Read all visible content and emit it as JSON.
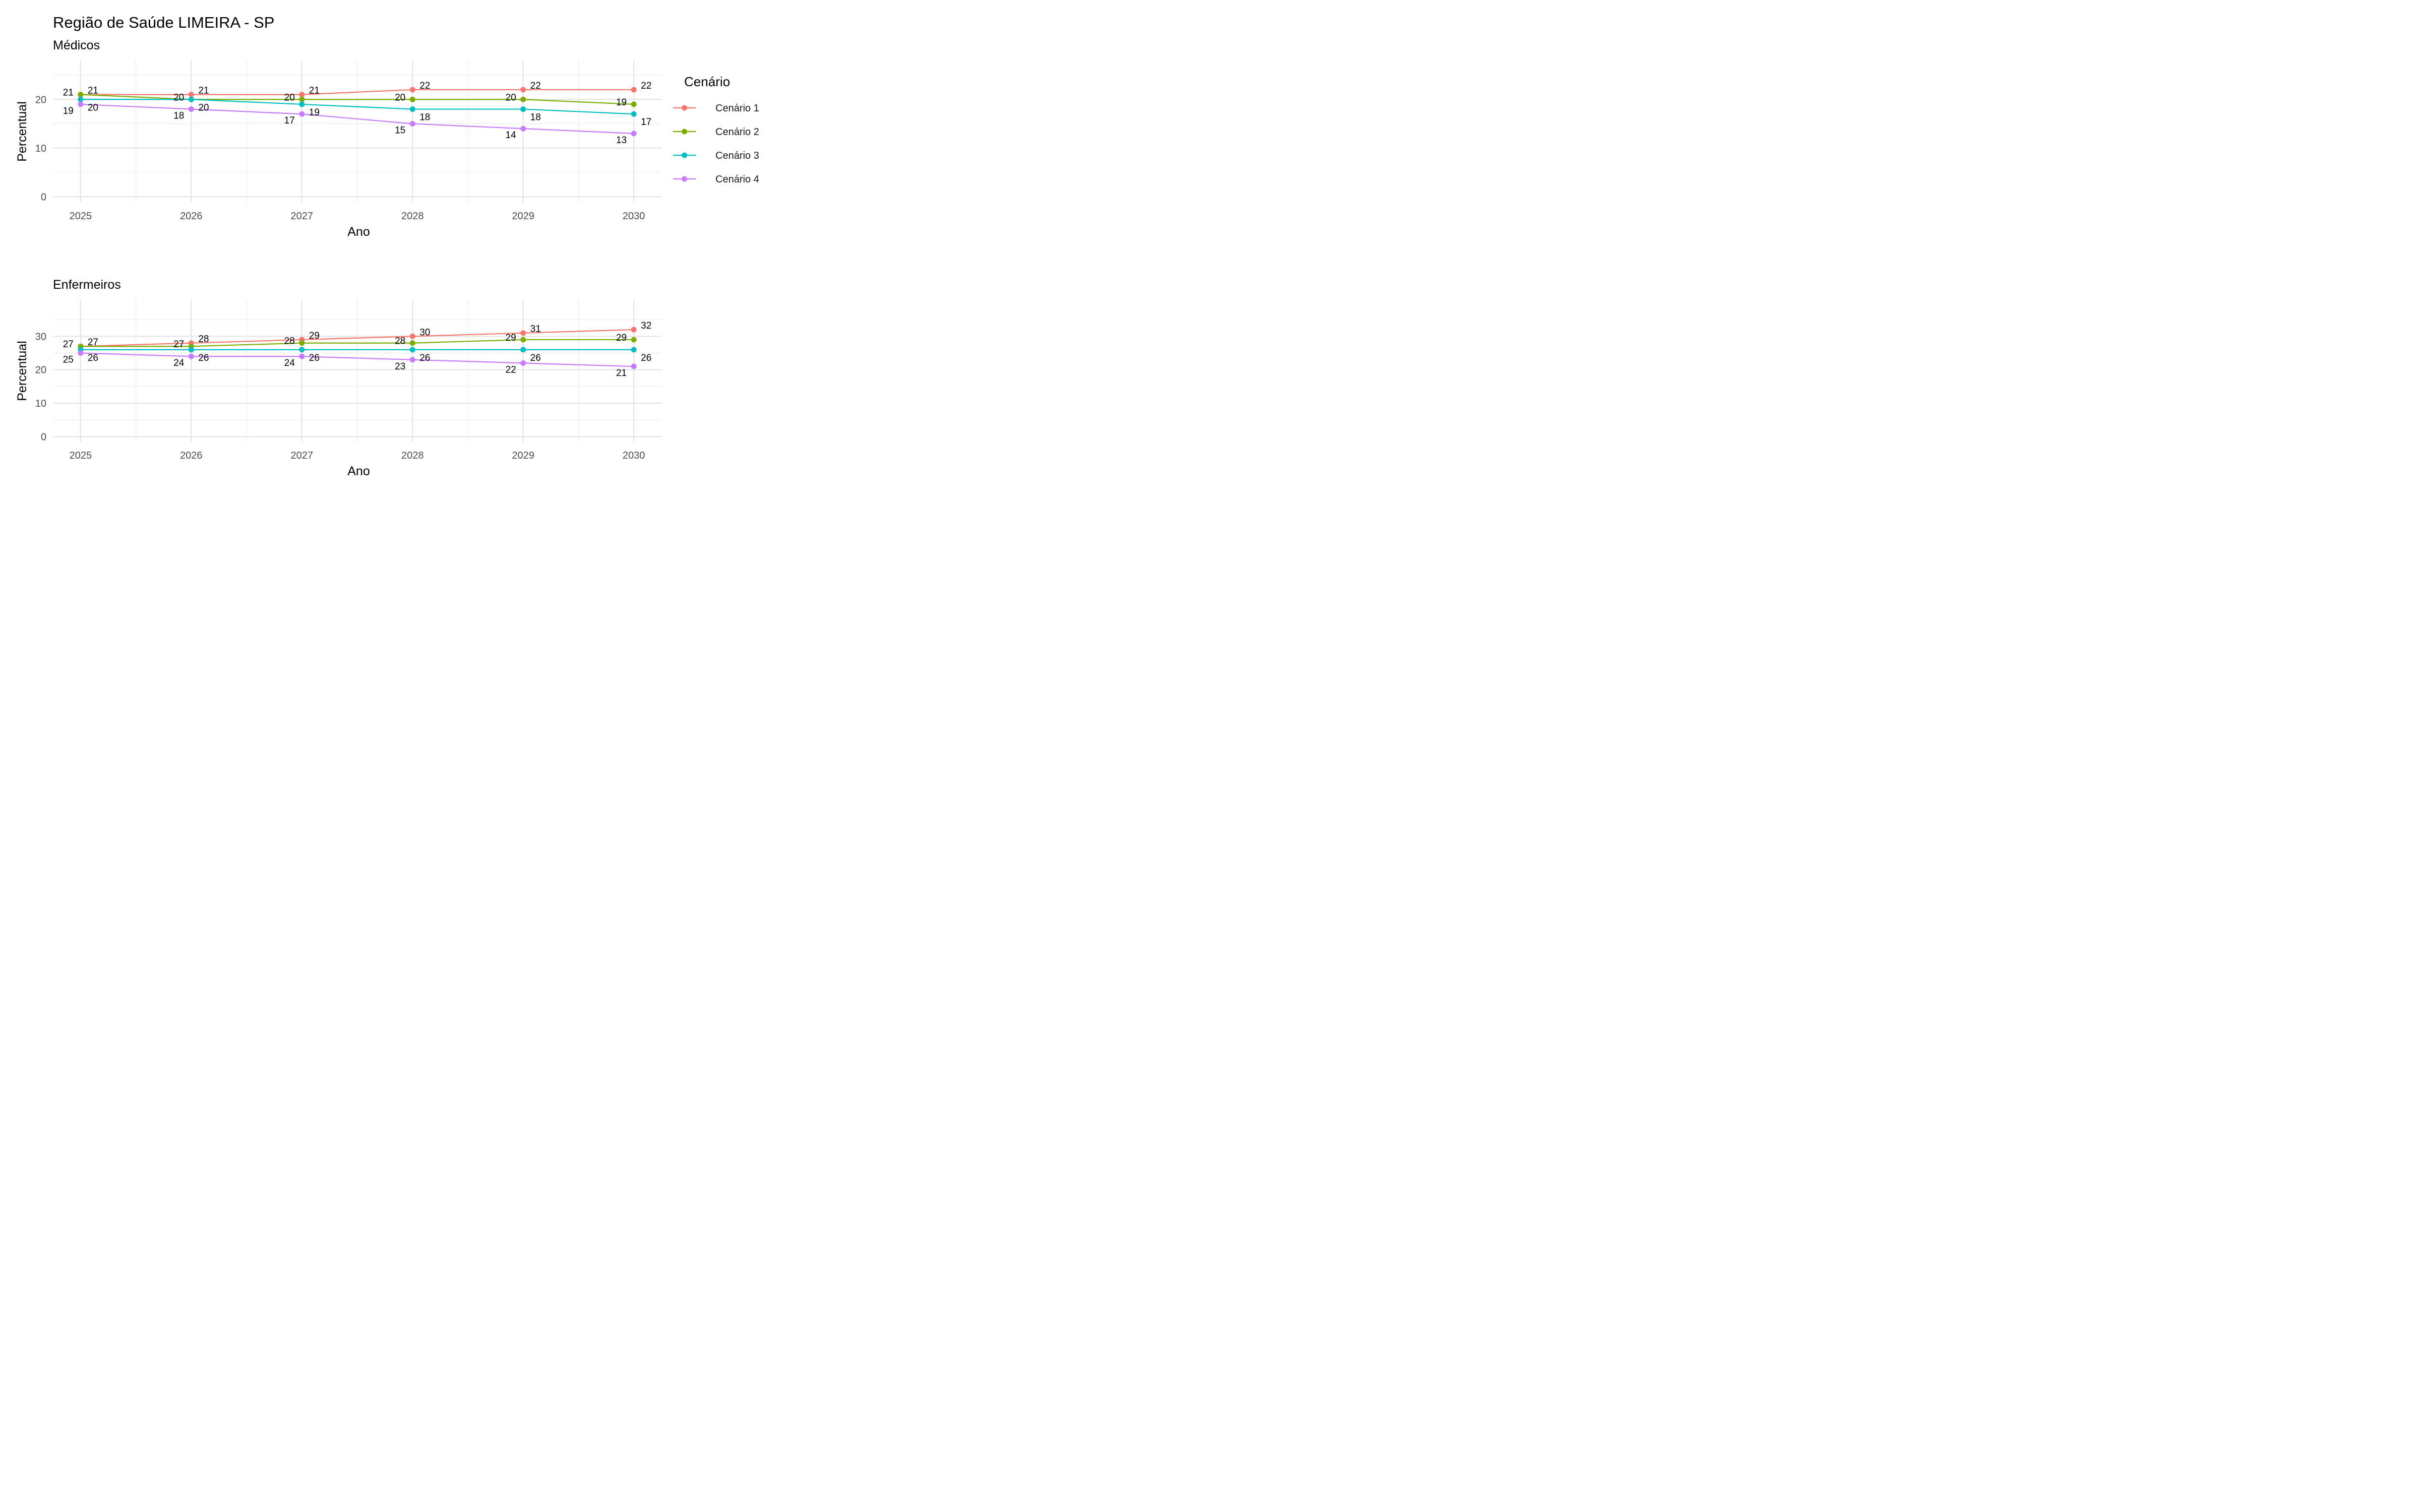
{
  "title": "Região de Saúde LIMEIRA - SP",
  "legend": {
    "title": "Cenário",
    "items": [
      {
        "label": "Cenário 1",
        "color": "#F8766D"
      },
      {
        "label": "Cenário 2",
        "color": "#7CAE00"
      },
      {
        "label": "Cenário 3",
        "color": "#00BFC4"
      },
      {
        "label": "Cenário 4",
        "color": "#C77CFF"
      }
    ]
  },
  "chart_data": [
    {
      "type": "line",
      "subtitle": "Médicos",
      "xlabel": "Ano",
      "ylabel": "Percentual",
      "x": [
        2025,
        2026,
        2027,
        2028,
        2029,
        2030
      ],
      "xlim": [
        2024.75,
        2030.25
      ],
      "ylim": [
        -1.2,
        28
      ],
      "yticks": [
        0,
        10,
        20
      ],
      "grid": true,
      "legend_position": "right",
      "series": [
        {
          "name": "Cenário 1",
          "values": [
            21,
            21,
            21,
            22,
            22,
            22
          ]
        },
        {
          "name": "Cenário 2",
          "values": [
            21,
            20,
            20,
            20,
            20,
            19
          ]
        },
        {
          "name": "Cenário 3",
          "values": [
            20,
            20,
            19,
            18,
            18,
            17
          ]
        },
        {
          "name": "Cenário 4",
          "values": [
            19,
            18,
            17,
            15,
            14,
            13
          ]
        }
      ]
    },
    {
      "type": "line",
      "subtitle": "Enfermeiros",
      "xlabel": "Ano",
      "ylabel": "Percentual",
      "x": [
        2025,
        2026,
        2027,
        2028,
        2029,
        2030
      ],
      "xlim": [
        2024.75,
        2030.25
      ],
      "ylim": [
        -1.6,
        40.9
      ],
      "yticks": [
        0,
        10,
        20,
        30
      ],
      "grid": true,
      "legend_position": "right",
      "series": [
        {
          "name": "Cenário 1",
          "values": [
            27,
            28,
            29,
            30,
            31,
            32
          ]
        },
        {
          "name": "Cenário 2",
          "values": [
            27,
            27,
            28,
            28,
            29,
            29
          ]
        },
        {
          "name": "Cenário 3",
          "values": [
            26,
            26,
            26,
            26,
            26,
            26
          ]
        },
        {
          "name": "Cenário 4",
          "values": [
            25,
            24,
            24,
            23,
            22,
            21
          ]
        }
      ]
    }
  ]
}
